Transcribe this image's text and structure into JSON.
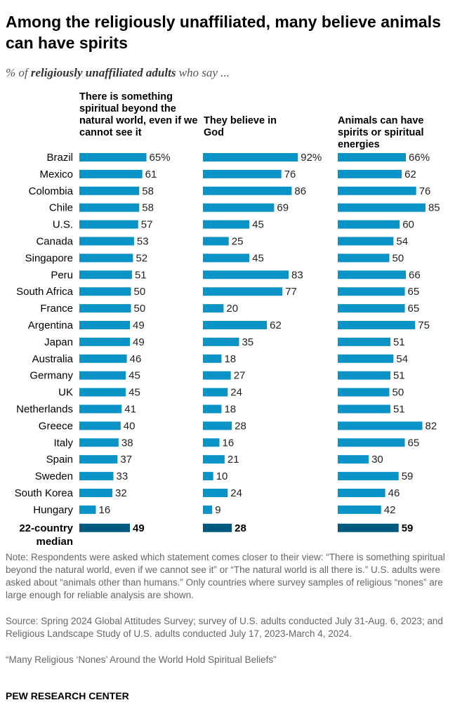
{
  "title": "Among the religiously unaffiliated, many believe animals can have spirits",
  "subtitle": {
    "pre": "% of ",
    "bold": "religiously unaffiliated adults",
    "post": " who say ..."
  },
  "chart_data": {
    "type": "bar",
    "orientation": "horizontal",
    "categories": [
      "Brazil",
      "Mexico",
      "Colombia",
      "Chile",
      "U.S.",
      "Canada",
      "Singapore",
      "Peru",
      "South Africa",
      "France",
      "Argentina",
      "Japan",
      "Australia",
      "Germany",
      "UK",
      "Netherlands",
      "Greece",
      "Italy",
      "Spain",
      "Sweden",
      "South Korea",
      "Hungary"
    ],
    "median_label": "22-country median",
    "series": [
      {
        "name": "There is something spiritual beyond the natural world, even if we cannot see it",
        "values": [
          65,
          61,
          58,
          58,
          57,
          53,
          52,
          51,
          50,
          50,
          49,
          49,
          46,
          45,
          45,
          41,
          40,
          38,
          37,
          33,
          32,
          16
        ],
        "median": 49
      },
      {
        "name": "They believe in God",
        "values": [
          92,
          76,
          86,
          69,
          45,
          25,
          45,
          83,
          77,
          20,
          62,
          35,
          18,
          27,
          24,
          18,
          28,
          16,
          21,
          10,
          24,
          9
        ],
        "median": 28
      },
      {
        "name": "Animals can have spirits or spiritual energies",
        "values": [
          66,
          62,
          76,
          85,
          60,
          54,
          50,
          66,
          65,
          65,
          75,
          51,
          54,
          51,
          50,
          51,
          82,
          65,
          30,
          59,
          46,
          42
        ],
        "median": 59
      }
    ],
    "value_suffix_first_row": "%",
    "colors": {
      "bar": "#0a93c6",
      "median": "#005a80"
    }
  },
  "notes": {
    "note": "Note: Respondents were asked which statement comes closer to their view: “There is something spiritual beyond the natural world, even if we cannot see it” or “The natural world is all there is.” U.S. adults were asked about “animals other than humans.” Only countries where survey samples of religious “nones” are large enough for reliable analysis are shown.",
    "source": "Source: Spring 2024 Global Attitudes Survey; survey of U.S. adults conducted July 31-Aug. 6, 2023; and Religious Landscape Study of U.S. adults conducted July 17, 2023-March 4, 2024.",
    "report": "“Many Religious ‘Nones’ Around the World Hold Spiritual Beliefs”"
  },
  "footer": "PEW RESEARCH CENTER"
}
